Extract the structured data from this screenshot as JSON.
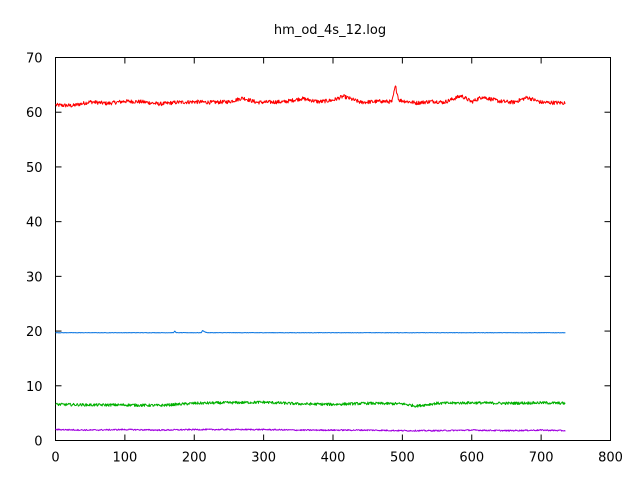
{
  "chart_data": {
    "type": "line",
    "title": "hm_od_4s_12.log",
    "xlabel": "",
    "ylabel": "",
    "xlim": [
      0,
      800
    ],
    "ylim": [
      0,
      70
    ],
    "x_ticks": [
      0,
      100,
      200,
      300,
      400,
      500,
      600,
      700,
      800
    ],
    "y_ticks": [
      0,
      10,
      20,
      30,
      40,
      50,
      60,
      70
    ],
    "grid": false,
    "legend": "none",
    "x_range": [
      0,
      735
    ],
    "series": [
      {
        "color": "#ff0000",
        "points": [
          [
            0,
            61.3
          ],
          [
            25,
            61.2
          ],
          [
            50,
            61.9
          ],
          [
            75,
            61.6
          ],
          [
            100,
            62.0
          ],
          [
            125,
            61.9
          ],
          [
            150,
            61.5
          ],
          [
            175,
            61.8
          ],
          [
            200,
            61.9
          ],
          [
            225,
            61.8
          ],
          [
            250,
            61.9
          ],
          [
            270,
            62.6
          ],
          [
            290,
            61.8
          ],
          [
            330,
            61.9
          ],
          [
            355,
            62.5
          ],
          [
            380,
            61.9
          ],
          [
            400,
            62.2
          ],
          [
            415,
            62.9
          ],
          [
            440,
            61.8
          ],
          [
            470,
            62.0
          ],
          [
            485,
            61.9
          ],
          [
            490,
            64.8
          ],
          [
            495,
            62.2
          ],
          [
            520,
            61.7
          ],
          [
            545,
            62.0
          ],
          [
            560,
            61.8
          ],
          [
            585,
            63.0
          ],
          [
            600,
            61.9
          ],
          [
            615,
            62.8
          ],
          [
            640,
            62.0
          ],
          [
            660,
            61.8
          ],
          [
            680,
            62.7
          ],
          [
            700,
            61.8
          ],
          [
            735,
            61.7
          ]
        ]
      },
      {
        "color": "#0070e0",
        "points": [
          [
            0,
            19.7
          ],
          [
            170,
            19.7
          ],
          [
            172,
            20.0
          ],
          [
            174,
            19.7
          ],
          [
            210,
            19.7
          ],
          [
            212,
            20.1
          ],
          [
            216,
            19.8
          ],
          [
            220,
            19.7
          ],
          [
            735,
            19.7
          ]
        ]
      },
      {
        "color": "#00b000",
        "points": [
          [
            0,
            6.6
          ],
          [
            50,
            6.5
          ],
          [
            100,
            6.5
          ],
          [
            150,
            6.4
          ],
          [
            200,
            6.8
          ],
          [
            250,
            6.9
          ],
          [
            300,
            7.0
          ],
          [
            350,
            6.7
          ],
          [
            400,
            6.6
          ],
          [
            450,
            6.8
          ],
          [
            500,
            6.7
          ],
          [
            520,
            6.3
          ],
          [
            550,
            6.8
          ],
          [
            600,
            6.9
          ],
          [
            650,
            6.8
          ],
          [
            700,
            6.9
          ],
          [
            735,
            6.8
          ]
        ]
      },
      {
        "color": "#a000e0",
        "points": [
          [
            0,
            2.0
          ],
          [
            50,
            1.9
          ],
          [
            100,
            2.0
          ],
          [
            150,
            1.9
          ],
          [
            200,
            2.0
          ],
          [
            250,
            2.0
          ],
          [
            300,
            2.0
          ],
          [
            350,
            1.9
          ],
          [
            400,
            1.9
          ],
          [
            450,
            1.9
          ],
          [
            500,
            1.8
          ],
          [
            550,
            1.8
          ],
          [
            600,
            1.9
          ],
          [
            650,
            1.8
          ],
          [
            700,
            1.9
          ],
          [
            735,
            1.8
          ]
        ]
      }
    ]
  }
}
